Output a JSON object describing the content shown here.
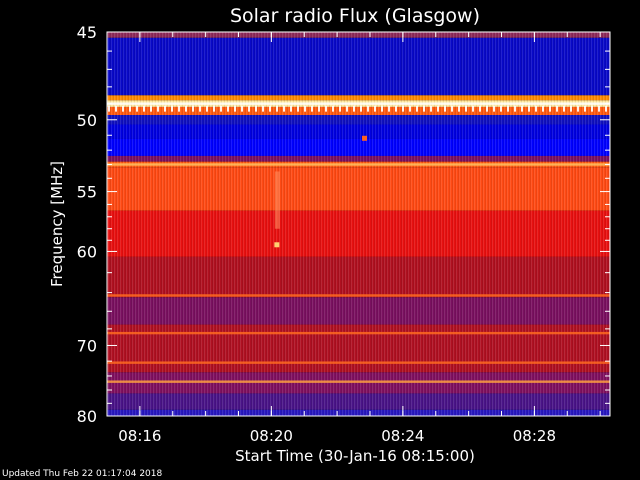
{
  "chart_data": {
    "type": "heatmap",
    "title": "Solar radio Flux (Glasgow)",
    "xlabel": "Start Time (30-Jan-16 08:15:00)",
    "ylabel": "Frequency [MHz]",
    "x_ticks": [
      "08:16",
      "08:20",
      "08:24",
      "08:28"
    ],
    "y_ticks": [
      45,
      50,
      55,
      60,
      70,
      80
    ],
    "xlim": [
      "08:15:00",
      "08:30:18"
    ],
    "ylim": [
      45,
      80
    ],
    "y_scale": "reciprocal",
    "colormap": "blue-purple-red-orange-yellow",
    "colors": {
      "background": "#000000",
      "text": "#ffffff",
      "axis": "#ffffff"
    },
    "bands": [
      {
        "f_from": 45.0,
        "f_to": 45.3,
        "color": "#8f2a5a"
      },
      {
        "f_from": 45.3,
        "f_to": 48.5,
        "color": "#0909c8"
      },
      {
        "f_from": 48.5,
        "f_to": 48.8,
        "color": "#ff8a00"
      },
      {
        "f_from": 48.8,
        "f_to": 49.2,
        "color": "#ffe8a0"
      },
      {
        "f_from": 49.2,
        "f_to": 49.7,
        "color": "#ff5a10"
      },
      {
        "f_from": 49.7,
        "f_to": 50.3,
        "color": "#1010c0"
      },
      {
        "f_from": 50.3,
        "f_to": 51.2,
        "color": "#0000e0"
      },
      {
        "f_from": 51.2,
        "f_to": 52.4,
        "color": "#0000ff"
      },
      {
        "f_from": 52.4,
        "f_to": 52.8,
        "color": "#7a1060"
      },
      {
        "f_from": 52.8,
        "f_to": 53.2,
        "color": "#ff5a10"
      },
      {
        "f_from": 53.2,
        "f_to": 56.5,
        "color": "#ff4a14"
      },
      {
        "f_from": 56.5,
        "f_to": 60.5,
        "color": "#e81010"
      },
      {
        "f_from": 60.5,
        "f_to": 64.5,
        "color": "#b01020"
      },
      {
        "f_from": 64.5,
        "f_to": 67.5,
        "color": "#7a1060"
      },
      {
        "f_from": 67.5,
        "f_to": 73.5,
        "color": "#b01022"
      },
      {
        "f_from": 73.5,
        "f_to": 76.5,
        "color": "#801060"
      },
      {
        "f_from": 76.5,
        "f_to": 79.0,
        "color": "#4a1488"
      },
      {
        "f_from": 79.0,
        "f_to": 80.0,
        "color": "#2818c0"
      }
    ],
    "features": [
      {
        "kind": "line",
        "f": 49.0,
        "color": "#ffffff"
      },
      {
        "kind": "line",
        "f": 53.0,
        "color": "#ffc060"
      },
      {
        "kind": "line",
        "f": 64.3,
        "color": "#ff6a20"
      },
      {
        "kind": "line",
        "f": 68.5,
        "color": "#ff6a20"
      },
      {
        "kind": "line",
        "f": 72.2,
        "color": "#ff6a20"
      },
      {
        "kind": "line",
        "f": 74.8,
        "color": "#ffa040"
      },
      {
        "kind": "vband",
        "t": "08:20:10",
        "f_from": 53.5,
        "f_to": 58.0,
        "color": "#ff9060"
      },
      {
        "kind": "spot",
        "t": "08:20:10",
        "f": 59.4,
        "color": "#ffd070"
      },
      {
        "kind": "spot",
        "t": "08:22:50",
        "f": 51.2,
        "color": "#ff6020"
      }
    ]
  },
  "footer": {
    "updated": "Updated Thu Feb 22 01:17:04 2018"
  }
}
